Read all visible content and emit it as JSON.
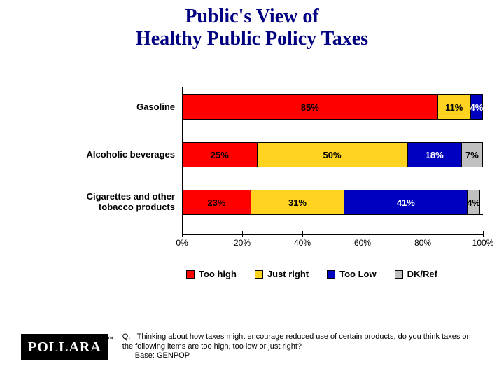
{
  "title_line1": "Public's View of",
  "title_line2": "Healthy Public Policy Taxes",
  "title_fontsize": 28,
  "title_color": "#000080",
  "chart": {
    "type": "stacked-bar-horizontal-100pct",
    "background_color": "#ffffff",
    "category_fontsize": 13,
    "value_fontsize": 13,
    "categories": [
      {
        "label": "Gasoline",
        "segments": [
          {
            "value": 85,
            "label": "85%",
            "color": "#ff0000"
          },
          {
            "value": 11,
            "label": "11%",
            "color": "#ffd320"
          },
          {
            "value": 4,
            "label": "4%",
            "color": "#0000c0"
          },
          {
            "value": 0,
            "label": "",
            "color": "#c0c0c0"
          }
        ]
      },
      {
        "label": "Alcoholic beverages",
        "segments": [
          {
            "value": 25,
            "label": "25%",
            "color": "#ff0000"
          },
          {
            "value": 50,
            "label": "50%",
            "color": "#ffd320"
          },
          {
            "value": 18,
            "label": "18%",
            "color": "#0000c0"
          },
          {
            "value": 7,
            "label": "7%",
            "color": "#c0c0c0"
          }
        ]
      },
      {
        "label": "Cigarettes and other tobacco products",
        "segments": [
          {
            "value": 23,
            "label": "23%",
            "color": "#ff0000"
          },
          {
            "value": 31,
            "label": "31%",
            "color": "#ffd320"
          },
          {
            "value": 41,
            "label": "41%",
            "color": "#0000c0"
          },
          {
            "value": 4,
            "label": "4%",
            "color": "#c0c0c0"
          }
        ]
      }
    ],
    "xaxis": {
      "min": 0,
      "max": 100,
      "step": 20,
      "ticks": [
        "0%",
        "20%",
        "40%",
        "60%",
        "80%",
        "100%"
      ],
      "tick_fontsize": 12
    },
    "legend": {
      "items": [
        {
          "label": "Too high",
          "color": "#ff0000"
        },
        {
          "label": "Just right",
          "color": "#ffd320"
        },
        {
          "label": "Too Low",
          "color": "#0000c0"
        },
        {
          "label": "DK/Ref",
          "color": "#c0c0c0"
        }
      ],
      "fontsize": 13
    }
  },
  "logo_text": "POLLARA",
  "question_prefix": "Q:",
  "question_text": "Thinking about how taxes might encourage reduced use of certain products, do you think taxes on the following items are too high, too low or just right?",
  "question_base": "Base: GENPOP"
}
